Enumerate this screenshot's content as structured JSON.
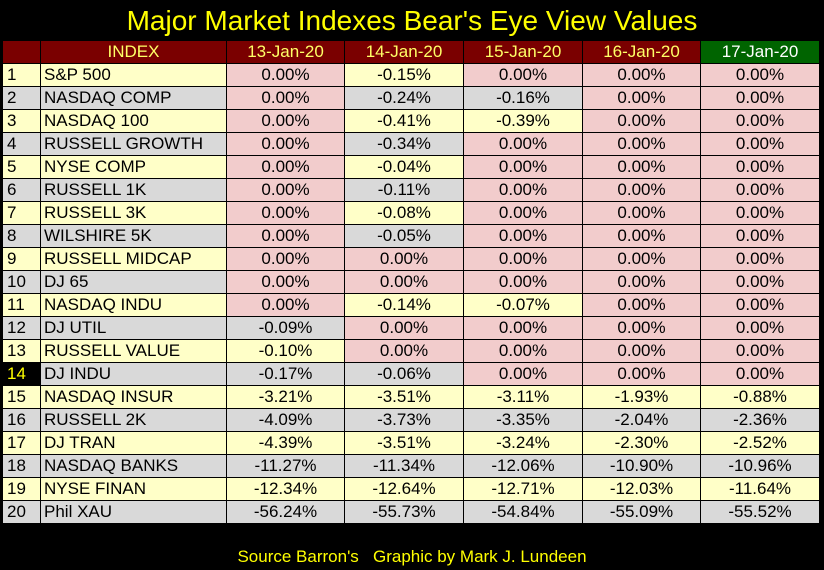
{
  "title": "Major Market Indexes Bear's Eye View Values",
  "footer": "Source Barron's   Graphic by Mark J. Lundeen",
  "colors": {
    "header_bg": "#7a0000",
    "header_text": "#ffff66",
    "last_header_bg": "#006400",
    "zero_cell": "#f2cccc",
    "row_odd": "#ffffc8",
    "row_even": "#d9d9d9",
    "title": "#ffff00"
  },
  "chart_data": {
    "type": "table",
    "title": "Major Market Indexes Bear's Eye View Values",
    "columns": [
      "",
      "INDEX",
      "13-Jan-20",
      "14-Jan-20",
      "15-Jan-20",
      "16-Jan-20",
      "17-Jan-20"
    ],
    "highlight_row": 14,
    "rows": [
      {
        "n": "1",
        "name": "S&P 500",
        "values": [
          "0.00%",
          "-0.15%",
          "0.00%",
          "0.00%",
          "0.00%"
        ]
      },
      {
        "n": "2",
        "name": "NASDAQ COMP",
        "values": [
          "0.00%",
          "-0.24%",
          "-0.16%",
          "0.00%",
          "0.00%"
        ]
      },
      {
        "n": "3",
        "name": "NASDAQ 100",
        "values": [
          "0.00%",
          "-0.41%",
          "-0.39%",
          "0.00%",
          "0.00%"
        ]
      },
      {
        "n": "4",
        "name": "RUSSELL GROWTH",
        "values": [
          "0.00%",
          "-0.34%",
          "0.00%",
          "0.00%",
          "0.00%"
        ]
      },
      {
        "n": "5",
        "name": "NYSE COMP",
        "values": [
          "0.00%",
          "-0.04%",
          "0.00%",
          "0.00%",
          "0.00%"
        ]
      },
      {
        "n": "6",
        "name": "RUSSELL 1K",
        "values": [
          "0.00%",
          "-0.11%",
          "0.00%",
          "0.00%",
          "0.00%"
        ]
      },
      {
        "n": "7",
        "name": "RUSSELL 3K",
        "values": [
          "0.00%",
          "-0.08%",
          "0.00%",
          "0.00%",
          "0.00%"
        ]
      },
      {
        "n": "8",
        "name": "WILSHIRE 5K",
        "values": [
          "0.00%",
          "-0.05%",
          "0.00%",
          "0.00%",
          "0.00%"
        ]
      },
      {
        "n": "9",
        "name": "RUSSELL MIDCAP",
        "values": [
          "0.00%",
          "0.00%",
          "0.00%",
          "0.00%",
          "0.00%"
        ]
      },
      {
        "n": "10",
        "name": "DJ  65",
        "values": [
          "0.00%",
          "0.00%",
          "0.00%",
          "0.00%",
          "0.00%"
        ]
      },
      {
        "n": "11",
        "name": "NASDAQ INDU",
        "values": [
          "0.00%",
          "-0.14%",
          "-0.07%",
          "0.00%",
          "0.00%"
        ]
      },
      {
        "n": "12",
        "name": "DJ  UTIL",
        "values": [
          "-0.09%",
          "0.00%",
          "0.00%",
          "0.00%",
          "0.00%"
        ]
      },
      {
        "n": "13",
        "name": "RUSSELL VALUE",
        "values": [
          "-0.10%",
          "0.00%",
          "0.00%",
          "0.00%",
          "0.00%"
        ]
      },
      {
        "n": "14",
        "name": "DJ  INDU",
        "values": [
          "-0.17%",
          "-0.06%",
          "0.00%",
          "0.00%",
          "0.00%"
        ]
      },
      {
        "n": "15",
        "name": "NASDAQ INSUR",
        "values": [
          "-3.21%",
          "-3.51%",
          "-3.11%",
          "-1.93%",
          "-0.88%"
        ]
      },
      {
        "n": "16",
        "name": "RUSSELL 2K",
        "values": [
          "-4.09%",
          "-3.73%",
          "-3.35%",
          "-2.04%",
          "-2.36%"
        ]
      },
      {
        "n": "17",
        "name": "DJ  TRAN",
        "values": [
          "-4.39%",
          "-3.51%",
          "-3.24%",
          "-2.30%",
          "-2.52%"
        ]
      },
      {
        "n": "18",
        "name": "NASDAQ BANKS",
        "values": [
          "-11.27%",
          "-11.34%",
          "-12.06%",
          "-10.90%",
          "-10.96%"
        ]
      },
      {
        "n": "19",
        "name": "NYSE FINAN",
        "values": [
          "-12.34%",
          "-12.64%",
          "-12.71%",
          "-12.03%",
          "-11.64%"
        ]
      },
      {
        "n": "20",
        "name": "Phil XAU",
        "values": [
          "-56.24%",
          "-55.73%",
          "-54.84%",
          "-55.09%",
          "-55.52%"
        ]
      }
    ]
  }
}
